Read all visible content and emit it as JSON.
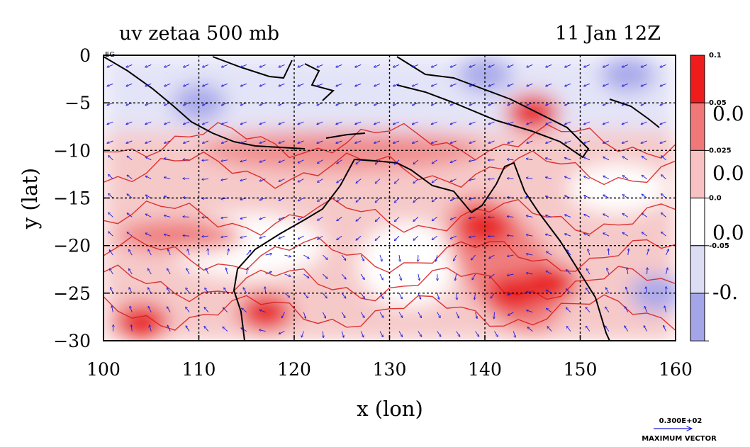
{
  "chart_data": {
    "type": "heatmap",
    "title": "uv zetaa 500 mb",
    "subtitle": "11 Jan 12Z",
    "xlabel": "x (lon)",
    "ylabel": "y (lat)",
    "xlim": [
      100,
      160
    ],
    "ylim": [
      -30,
      0
    ],
    "xticks": [
      100,
      110,
      120,
      130,
      140,
      150,
      160
    ],
    "yticks": [
      0,
      -5,
      -10,
      -15,
      -20,
      -25,
      -30
    ],
    "grid": true,
    "colorbar": {
      "levels": [
        {
          "label": "0.1",
          "color": "#ee1c1c"
        },
        {
          "label": "0.05",
          "color": "#f07878"
        },
        {
          "label": "0.025",
          "color": "#f8c2c2"
        },
        {
          "label": "0.0",
          "color": "#ffffff"
        },
        {
          "label": "-0.05",
          "color": "#dcdcf5"
        },
        {
          "label": "",
          "color": "#a4a4e8"
        }
      ],
      "big_labels": [
        "0.0",
        "0.0",
        "0.0",
        "-0."
      ]
    },
    "fields": [
      {
        "name": "strong positive",
        "lon": 140,
        "lat": -18,
        "value": 0.1
      },
      {
        "name": "strong positive",
        "lon": 143,
        "lat": -25,
        "value": 0.1
      },
      {
        "name": "strong positive",
        "lon": 147,
        "lat": -24,
        "value": 0.1
      },
      {
        "name": "strong positive",
        "lon": 117,
        "lat": -27,
        "value": 0.1
      },
      {
        "name": "strong positive",
        "lon": 104,
        "lat": -28,
        "value": 0.1
      },
      {
        "name": "strong positive",
        "lon": 145,
        "lat": -6,
        "value": 0.1
      },
      {
        "name": "negative",
        "lon": 140,
        "lat": -2,
        "value": -0.05
      },
      {
        "name": "negative",
        "lon": 110,
        "lat": -5,
        "value": -0.05
      },
      {
        "name": "negative",
        "lon": 155,
        "lat": -2,
        "value": -0.05
      },
      {
        "name": "negative",
        "lon": 158,
        "lat": -25,
        "value": -0.05
      }
    ],
    "vector_reference": {
      "value": "0.300E+02",
      "label": "MAXIMUM VECTOR"
    },
    "corner_label": "EG"
  },
  "colors": {
    "grid": "#000000",
    "vector": "#1a1adc",
    "contour": "#d81818",
    "coast": "#000000"
  }
}
